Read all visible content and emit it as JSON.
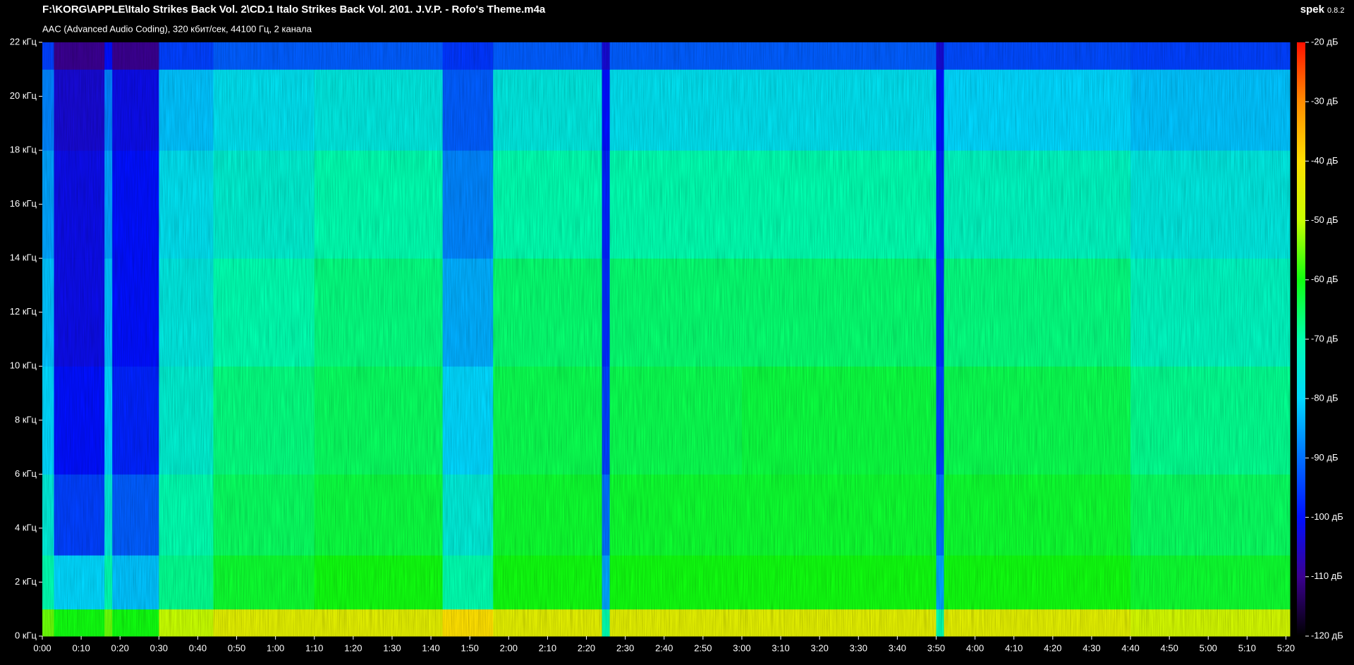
{
  "app_name": "spek",
  "app_version": "0.8.2",
  "chart_data": {
    "type": "spectrogram",
    "title": "F:\\KORG\\APPLE\\Italo Strikes Back Vol. 2\\CD.1 Italo Strikes Back Vol. 2\\01. J.V.P. - Rofo's Theme.m4a",
    "subtitle": "AAC (Advanced Audio Coding), 320 кбит/сек, 44100 Гц, 2 канала",
    "xlim": [
      0,
      321
    ],
    "xticks": [
      {
        "value": 0,
        "label": "0:00"
      },
      {
        "value": 10,
        "label": "0:10"
      },
      {
        "value": 20,
        "label": "0:20"
      },
      {
        "value": 30,
        "label": "0:30"
      },
      {
        "value": 40,
        "label": "0:40"
      },
      {
        "value": 50,
        "label": "0:50"
      },
      {
        "value": 60,
        "label": "1:00"
      },
      {
        "value": 70,
        "label": "1:10"
      },
      {
        "value": 80,
        "label": "1:20"
      },
      {
        "value": 90,
        "label": "1:30"
      },
      {
        "value": 100,
        "label": "1:40"
      },
      {
        "value": 110,
        "label": "1:50"
      },
      {
        "value": 120,
        "label": "2:00"
      },
      {
        "value": 130,
        "label": "2:10"
      },
      {
        "value": 140,
        "label": "2:20"
      },
      {
        "value": 150,
        "label": "2:30"
      },
      {
        "value": 160,
        "label": "2:40"
      },
      {
        "value": 170,
        "label": "2:50"
      },
      {
        "value": 180,
        "label": "3:00"
      },
      {
        "value": 190,
        "label": "3:10"
      },
      {
        "value": 200,
        "label": "3:20"
      },
      {
        "value": 210,
        "label": "3:30"
      },
      {
        "value": 220,
        "label": "3:40"
      },
      {
        "value": 230,
        "label": "3:50"
      },
      {
        "value": 240,
        "label": "4:00"
      },
      {
        "value": 250,
        "label": "4:10"
      },
      {
        "value": 260,
        "label": "4:20"
      },
      {
        "value": 270,
        "label": "4:30"
      },
      {
        "value": 280,
        "label": "4:40"
      },
      {
        "value": 290,
        "label": "4:50"
      },
      {
        "value": 300,
        "label": "5:00"
      },
      {
        "value": 310,
        "label": "5:10"
      },
      {
        "value": 320,
        "label": "5:20"
      }
    ],
    "ylim": [
      0,
      22
    ],
    "yticks": [
      {
        "value": 0,
        "label": "0 кГц"
      },
      {
        "value": 2,
        "label": "2 кГц"
      },
      {
        "value": 4,
        "label": "4 кГц"
      },
      {
        "value": 6,
        "label": "6 кГц"
      },
      {
        "value": 8,
        "label": "8 кГц"
      },
      {
        "value": 10,
        "label": "10 кГц"
      },
      {
        "value": 12,
        "label": "12 кГц"
      },
      {
        "value": 14,
        "label": "14 кГц"
      },
      {
        "value": 16,
        "label": "16 кГц"
      },
      {
        "value": 18,
        "label": "18 кГц"
      },
      {
        "value": 20,
        "label": "20 кГц"
      },
      {
        "value": 22,
        "label": "22 кГц"
      }
    ],
    "clim": [
      -120,
      -20
    ],
    "cticks": [
      {
        "value": -120,
        "label": "-120 дБ"
      },
      {
        "value": -110,
        "label": "-110 дБ"
      },
      {
        "value": -100,
        "label": "-100 дБ"
      },
      {
        "value": -90,
        "label": "-90 дБ"
      },
      {
        "value": -80,
        "label": "-80 дБ"
      },
      {
        "value": -70,
        "label": "-70 дБ"
      },
      {
        "value": -60,
        "label": "-60 дБ"
      },
      {
        "value": -50,
        "label": "-50 дБ"
      },
      {
        "value": -40,
        "label": "-40 дБ"
      },
      {
        "value": -30,
        "label": "-30 дБ"
      },
      {
        "value": -20,
        "label": "-20 дБ"
      }
    ],
    "colormap": [
      "#000000",
      "#3a0090",
      "#0010ff",
      "#0070ff",
      "#00d8ff",
      "#00ffb0",
      "#10ff10",
      "#c8ff00",
      "#ffe000",
      "#ff8c00",
      "#ff1000"
    ],
    "time_bins": [
      0,
      3,
      16,
      18,
      30,
      44,
      70,
      103,
      116,
      144,
      146,
      180,
      230,
      232,
      280,
      321
    ],
    "freq_bins": [
      0,
      1,
      3,
      6,
      10,
      14,
      18,
      21,
      22
    ],
    "values": [
      [
        -55,
        -60,
        -55,
        -60,
        -50,
        -45,
        -45,
        -40,
        -45,
        -70,
        -45,
        -45,
        -70,
        -45,
        -48
      ],
      [
        -70,
        -80,
        -70,
        -82,
        -68,
        -62,
        -60,
        -70,
        -60,
        -85,
        -60,
        -60,
        -85,
        -60,
        -62
      ],
      [
        -75,
        -95,
        -75,
        -92,
        -70,
        -65,
        -63,
        -75,
        -62,
        -90,
        -62,
        -62,
        -90,
        -62,
        -65
      ],
      [
        -80,
        -100,
        -80,
        -98,
        -74,
        -67,
        -65,
        -80,
        -64,
        -95,
        -64,
        -63,
        -95,
        -64,
        -68
      ],
      [
        -82,
        -102,
        -82,
        -100,
        -76,
        -70,
        -67,
        -84,
        -66,
        -97,
        -66,
        -66,
        -97,
        -67,
        -72
      ],
      [
        -85,
        -102,
        -85,
        -100,
        -78,
        -74,
        -70,
        -88,
        -70,
        -98,
        -70,
        -70,
        -98,
        -72,
        -76
      ],
      [
        -88,
        -104,
        -88,
        -102,
        -82,
        -78,
        -76,
        -92,
        -76,
        -100,
        -78,
        -78,
        -100,
        -80,
        -82
      ],
      [
        -95,
        -110,
        -100,
        -110,
        -95,
        -92,
        -92,
        -96,
        -92,
        -104,
        -92,
        -92,
        -104,
        -94,
        -95
      ]
    ]
  }
}
